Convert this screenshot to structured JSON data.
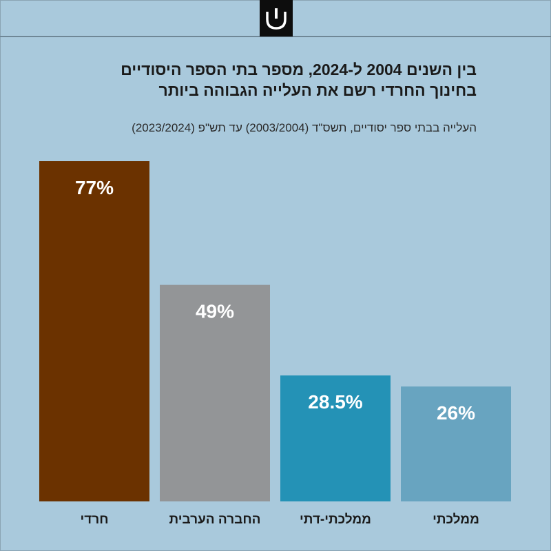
{
  "header": {
    "title_line1": "בין השנים 2004 ל-2024, מספר בתי הספר היסודיים",
    "title_line2": "בחינוך החרדי רשם את העלייה הגבוהה ביותר",
    "subtitle": "העלייה בבתי ספר יסודיים, תשס\"ד (2003/2004) עד תש\"פ (2023/2024)"
  },
  "chart_data": {
    "type": "bar",
    "title": "בין השנים 2004 ל-2024, מספר בתי הספר היסודיים בחינוך החרדי רשם את העלייה הגבוהה ביותר",
    "subtitle": "העלייה בבתי ספר יסודיים, תשס\"ד (2003/2004) עד תש\"פ (2023/2024)",
    "categories": [
      "חרדי",
      "החברה הערבית",
      "ממלכתי-דתי",
      "ממלכתי"
    ],
    "values": [
      77,
      49,
      28.5,
      26
    ],
    "value_labels": [
      "77%",
      "49%",
      "28.5%",
      "26%"
    ],
    "colors": [
      "#6b3200",
      "#939597",
      "#2492b6",
      "#68a4c0"
    ],
    "ylim": [
      0,
      77
    ],
    "grid": false,
    "legend": "none"
  }
}
